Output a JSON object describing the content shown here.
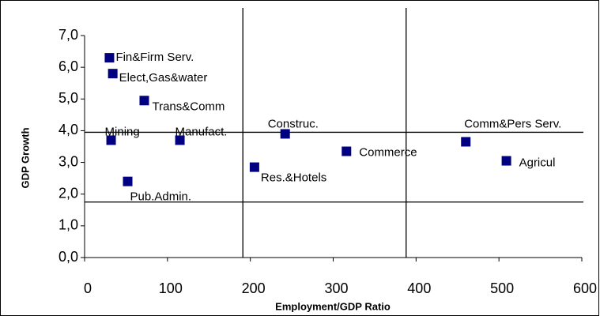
{
  "chart_data": {
    "type": "scatter",
    "x_label": "Employment/GDP Ratio",
    "y_label": "GDP Growth",
    "series": [
      {
        "color": "#000080",
        "labels": [
          "Fin&Firm Serv.",
          "Elect,Gas&water",
          "Trans&Comm",
          "Mining",
          "Manufact.",
          "Construc.",
          "Res.&Hotels",
          "Pub.Admin.",
          "Commerce",
          "Comm&Pers Serv.",
          "Agricul"
        ],
        "x": [
          30,
          34,
          72,
          32,
          115,
          242,
          205,
          52,
          316,
          460,
          509
        ],
        "values": [
          6.3,
          5.8,
          4.95,
          3.7,
          3.7,
          3.9,
          2.85,
          2.4,
          3.35,
          3.65,
          3.05
        ]
      }
    ],
    "reference_x": [
      191,
      388
    ],
    "reference_y": [
      3.95,
      1.75
    ],
    "xlim": [
      0,
      600
    ],
    "xticks": [
      0,
      100,
      200,
      300,
      400,
      500,
      600
    ],
    "ylim": [
      0,
      7
    ],
    "yticks": [
      {
        "value": 0,
        "label": "0,0"
      },
      {
        "value": 1,
        "label": "1,0"
      },
      {
        "value": 2,
        "label": "2,0"
      },
      {
        "value": 3,
        "label": "3,0"
      },
      {
        "value": 4,
        "label": "4,0"
      },
      {
        "value": 5,
        "label": "5,0"
      },
      {
        "value": 6,
        "label": "6,0"
      },
      {
        "value": 7,
        "label": "7,0"
      }
    ]
  }
}
